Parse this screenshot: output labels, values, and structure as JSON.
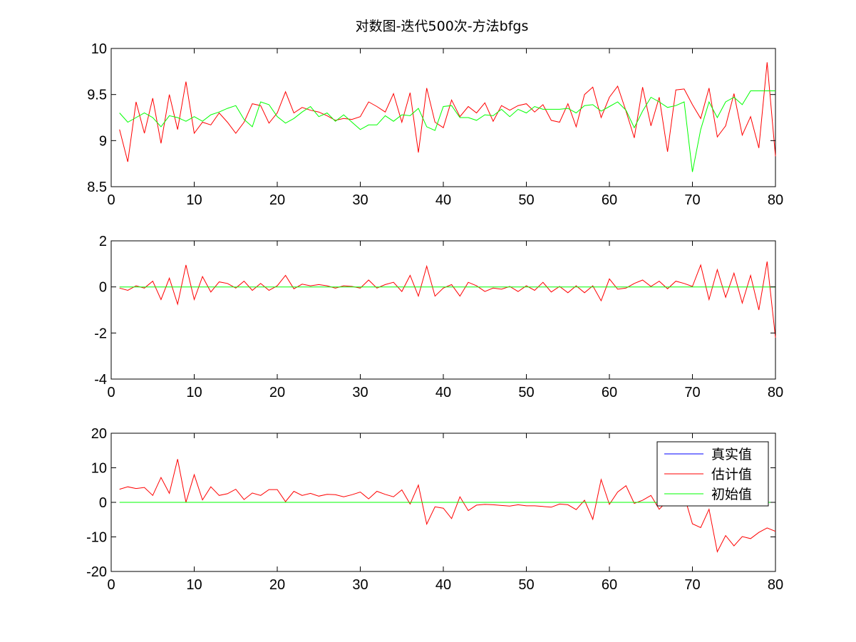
{
  "title": "对数图-迭代500次-方法bfgs",
  "colors": {
    "true": "#0000ff",
    "estimate": "#ff0000",
    "initial": "#00ff00",
    "axes": "#000000"
  },
  "legend": {
    "placement": "top-right of third panel",
    "entries": [
      "真实值",
      "估计值",
      "初始值"
    ]
  },
  "chart_data": [
    {
      "type": "line",
      "xlim": [
        0,
        80
      ],
      "ylim": [
        8.5,
        10
      ],
      "xticks": [
        0,
        10,
        20,
        30,
        40,
        50,
        60,
        70,
        80
      ],
      "yticks": [
        8.5,
        9,
        9.5,
        10
      ],
      "ytick_labels": [
        "8.5",
        "9",
        "9.5",
        "10"
      ],
      "series": [
        {
          "name": "估计值",
          "color": "#ff0000",
          "x": [
            1,
            2,
            3,
            4,
            5,
            6,
            7,
            8,
            9,
            10,
            11,
            12,
            13,
            14,
            15,
            16,
            17,
            18,
            19,
            20,
            21,
            22,
            23,
            24,
            25,
            26,
            27,
            28,
            29,
            30,
            31,
            32,
            33,
            34,
            35,
            36,
            37,
            38,
            39,
            40,
            41,
            42,
            43,
            44,
            45,
            46,
            47,
            48,
            49,
            50,
            51,
            52,
            53,
            54,
            55,
            56,
            57,
            58,
            59,
            60,
            61,
            62,
            63,
            64,
            65,
            66,
            67,
            68,
            69,
            70,
            71,
            72,
            73,
            74,
            75,
            76,
            77,
            78,
            79,
            80
          ],
          "y": [
            9.12,
            8.77,
            9.42,
            9.08,
            9.46,
            8.97,
            9.5,
            9.12,
            9.64,
            9.08,
            9.2,
            9.17,
            9.3,
            9.2,
            9.08,
            9.2,
            9.4,
            9.38,
            9.19,
            9.3,
            9.53,
            9.3,
            9.36,
            9.33,
            9.31,
            9.27,
            9.22,
            9.24,
            9.23,
            9.26,
            9.42,
            9.37,
            9.31,
            9.51,
            9.2,
            9.52,
            8.87,
            9.57,
            9.2,
            9.14,
            9.44,
            9.26,
            9.37,
            9.3,
            9.41,
            9.21,
            9.38,
            9.33,
            9.38,
            9.4,
            9.31,
            9.39,
            9.22,
            9.2,
            9.4,
            9.15,
            9.5,
            9.58,
            9.25,
            9.47,
            9.59,
            9.32,
            9.03,
            9.58,
            9.16,
            9.47,
            8.88,
            9.55,
            9.56,
            9.39,
            9.24,
            9.57,
            9.04,
            9.16,
            9.51,
            9.06,
            9.26,
            8.92,
            9.85,
            8.83
          ]
        },
        {
          "name": "初始值",
          "color": "#00ff00",
          "x": [
            1,
            2,
            3,
            4,
            5,
            6,
            7,
            8,
            9,
            10,
            11,
            12,
            13,
            14,
            15,
            16,
            17,
            18,
            19,
            20,
            21,
            22,
            23,
            24,
            25,
            26,
            27,
            28,
            29,
            30,
            31,
            32,
            33,
            34,
            35,
            36,
            37,
            38,
            39,
            40,
            41,
            42,
            43,
            44,
            45,
            46,
            47,
            48,
            49,
            50,
            51,
            52,
            53,
            54,
            55,
            56,
            57,
            58,
            59,
            60,
            61,
            62,
            63,
            64,
            65,
            66,
            67,
            68,
            69,
            70,
            71,
            72,
            73,
            74,
            75,
            76,
            77,
            78,
            79,
            80
          ],
          "y": [
            9.3,
            9.2,
            9.25,
            9.3,
            9.25,
            9.15,
            9.27,
            9.25,
            9.21,
            9.26,
            9.21,
            9.28,
            9.31,
            9.35,
            9.38,
            9.23,
            9.15,
            9.42,
            9.39,
            9.26,
            9.19,
            9.24,
            9.31,
            9.37,
            9.26,
            9.3,
            9.21,
            9.28,
            9.2,
            9.12,
            9.17,
            9.17,
            9.27,
            9.21,
            9.28,
            9.27,
            9.35,
            9.15,
            9.11,
            9.37,
            9.38,
            9.25,
            9.25,
            9.22,
            9.28,
            9.27,
            9.34,
            9.26,
            9.34,
            9.3,
            9.37,
            9.34,
            9.34,
            9.34,
            9.35,
            9.3,
            9.38,
            9.39,
            9.32,
            9.37,
            9.42,
            9.33,
            9.14,
            9.32,
            9.47,
            9.42,
            9.36,
            9.38,
            9.42,
            8.66,
            9.12,
            9.42,
            9.25,
            9.42,
            9.47,
            9.39,
            9.54,
            9.54,
            9.54,
            9.54
          ]
        }
      ]
    },
    {
      "type": "line",
      "xlim": [
        0,
        80
      ],
      "ylim": [
        -4,
        2
      ],
      "xticks": [
        0,
        10,
        20,
        30,
        40,
        50,
        60,
        70,
        80
      ],
      "yticks": [
        -4,
        -2,
        0,
        2
      ],
      "ytick_labels": [
        "-4",
        "-2",
        "0",
        "2"
      ],
      "series": [
        {
          "name": "估计值",
          "color": "#ff0000",
          "x": [
            1,
            2,
            3,
            4,
            5,
            6,
            7,
            8,
            9,
            10,
            11,
            12,
            13,
            14,
            15,
            16,
            17,
            18,
            19,
            20,
            21,
            22,
            23,
            24,
            25,
            26,
            27,
            28,
            29,
            30,
            31,
            32,
            33,
            34,
            35,
            36,
            37,
            38,
            39,
            40,
            41,
            42,
            43,
            44,
            45,
            46,
            47,
            48,
            49,
            50,
            51,
            52,
            53,
            54,
            55,
            56,
            57,
            58,
            59,
            60,
            61,
            62,
            63,
            64,
            65,
            66,
            67,
            68,
            69,
            70,
            71,
            72,
            73,
            74,
            75,
            76,
            77,
            78,
            79,
            80
          ],
          "y": [
            -0.05,
            -0.15,
            0.05,
            -0.05,
            0.25,
            -0.55,
            0.38,
            -0.75,
            0.95,
            -0.55,
            0.45,
            -0.22,
            0.22,
            0.15,
            -0.05,
            0.25,
            -0.15,
            0.15,
            -0.15,
            0.05,
            0.5,
            -0.08,
            0.12,
            0.05,
            0.1,
            0.05,
            -0.05,
            0.05,
            0.02,
            -0.05,
            0.3,
            -0.05,
            0.1,
            0.2,
            -0.2,
            0.5,
            -0.4,
            0.9,
            -0.4,
            -0.05,
            0.1,
            -0.4,
            0.2,
            0.05,
            -0.2,
            -0.05,
            -0.1,
            0.02,
            -0.2,
            0.05,
            -0.15,
            0.2,
            -0.22,
            0.02,
            -0.25,
            0.05,
            -0.25,
            0.05,
            -0.6,
            0.35,
            -0.1,
            -0.05,
            0.15,
            0.3,
            0.02,
            0.25,
            -0.08,
            0.25,
            0.15,
            0.02,
            0.95,
            -0.55,
            0.75,
            -0.45,
            0.6,
            -0.7,
            0.5,
            -1.0,
            1.1,
            -2.2
          ]
        },
        {
          "name": "初始值",
          "color": "#00ff00",
          "x": [
            1,
            80
          ],
          "y": [
            0,
            0
          ]
        }
      ]
    },
    {
      "type": "line",
      "xlim": [
        0,
        80
      ],
      "ylim": [
        -20,
        20
      ],
      "xticks": [
        0,
        10,
        20,
        30,
        40,
        50,
        60,
        70,
        80
      ],
      "yticks": [
        -20,
        -10,
        0,
        10,
        20
      ],
      "ytick_labels": [
        "-20",
        "-10",
        "0",
        "10",
        "20"
      ],
      "series": [
        {
          "name": "真实值",
          "color": "#0000ff",
          "x": [],
          "y": []
        },
        {
          "name": "估计值",
          "color": "#ff0000",
          "x": [
            1,
            2,
            3,
            4,
            5,
            6,
            7,
            8,
            9,
            10,
            11,
            12,
            13,
            14,
            15,
            16,
            17,
            18,
            19,
            20,
            21,
            22,
            23,
            24,
            25,
            26,
            27,
            28,
            29,
            30,
            31,
            32,
            33,
            34,
            35,
            36,
            37,
            38,
            39,
            40,
            41,
            42,
            43,
            44,
            45,
            46,
            47,
            48,
            49,
            50,
            51,
            52,
            53,
            54,
            55,
            56,
            57,
            58,
            59,
            60,
            61,
            62,
            63,
            64,
            65,
            66,
            67,
            68,
            69,
            70,
            71,
            72,
            73,
            74,
            75,
            76,
            77,
            78,
            79,
            80
          ],
          "y": [
            3.8,
            4.5,
            4.0,
            4.3,
            2.0,
            7.2,
            2.6,
            12.5,
            0.0,
            8.0,
            0.7,
            4.5,
            2.0,
            2.5,
            3.8,
            0.8,
            2.7,
            2.0,
            3.7,
            3.7,
            0.2,
            3.2,
            2.0,
            2.6,
            1.8,
            2.3,
            2.2,
            1.6,
            2.2,
            3.0,
            1.0,
            3.2,
            2.3,
            1.6,
            3.6,
            -0.5,
            5.0,
            -6.3,
            -1.3,
            -1.7,
            -4.7,
            1.6,
            -2.4,
            -0.8,
            -0.6,
            -0.7,
            -0.9,
            -1.1,
            -0.7,
            -1.0,
            -1.0,
            -1.2,
            -1.4,
            -0.5,
            -0.7,
            -2.1,
            0.6,
            -4.9,
            6.6,
            -0.6,
            3.0,
            4.8,
            -0.3,
            0.6,
            2.0,
            -2.0,
            0.5,
            -1.0,
            2.0,
            -6.2,
            -7.3,
            -2.0,
            -14.3,
            -9.6,
            -12.6,
            -9.9,
            -10.5,
            -8.7,
            -7.4,
            -8.4
          ]
        },
        {
          "name": "初始值",
          "color": "#00ff00",
          "x": [
            1,
            80
          ],
          "y": [
            0,
            0
          ]
        }
      ]
    }
  ]
}
